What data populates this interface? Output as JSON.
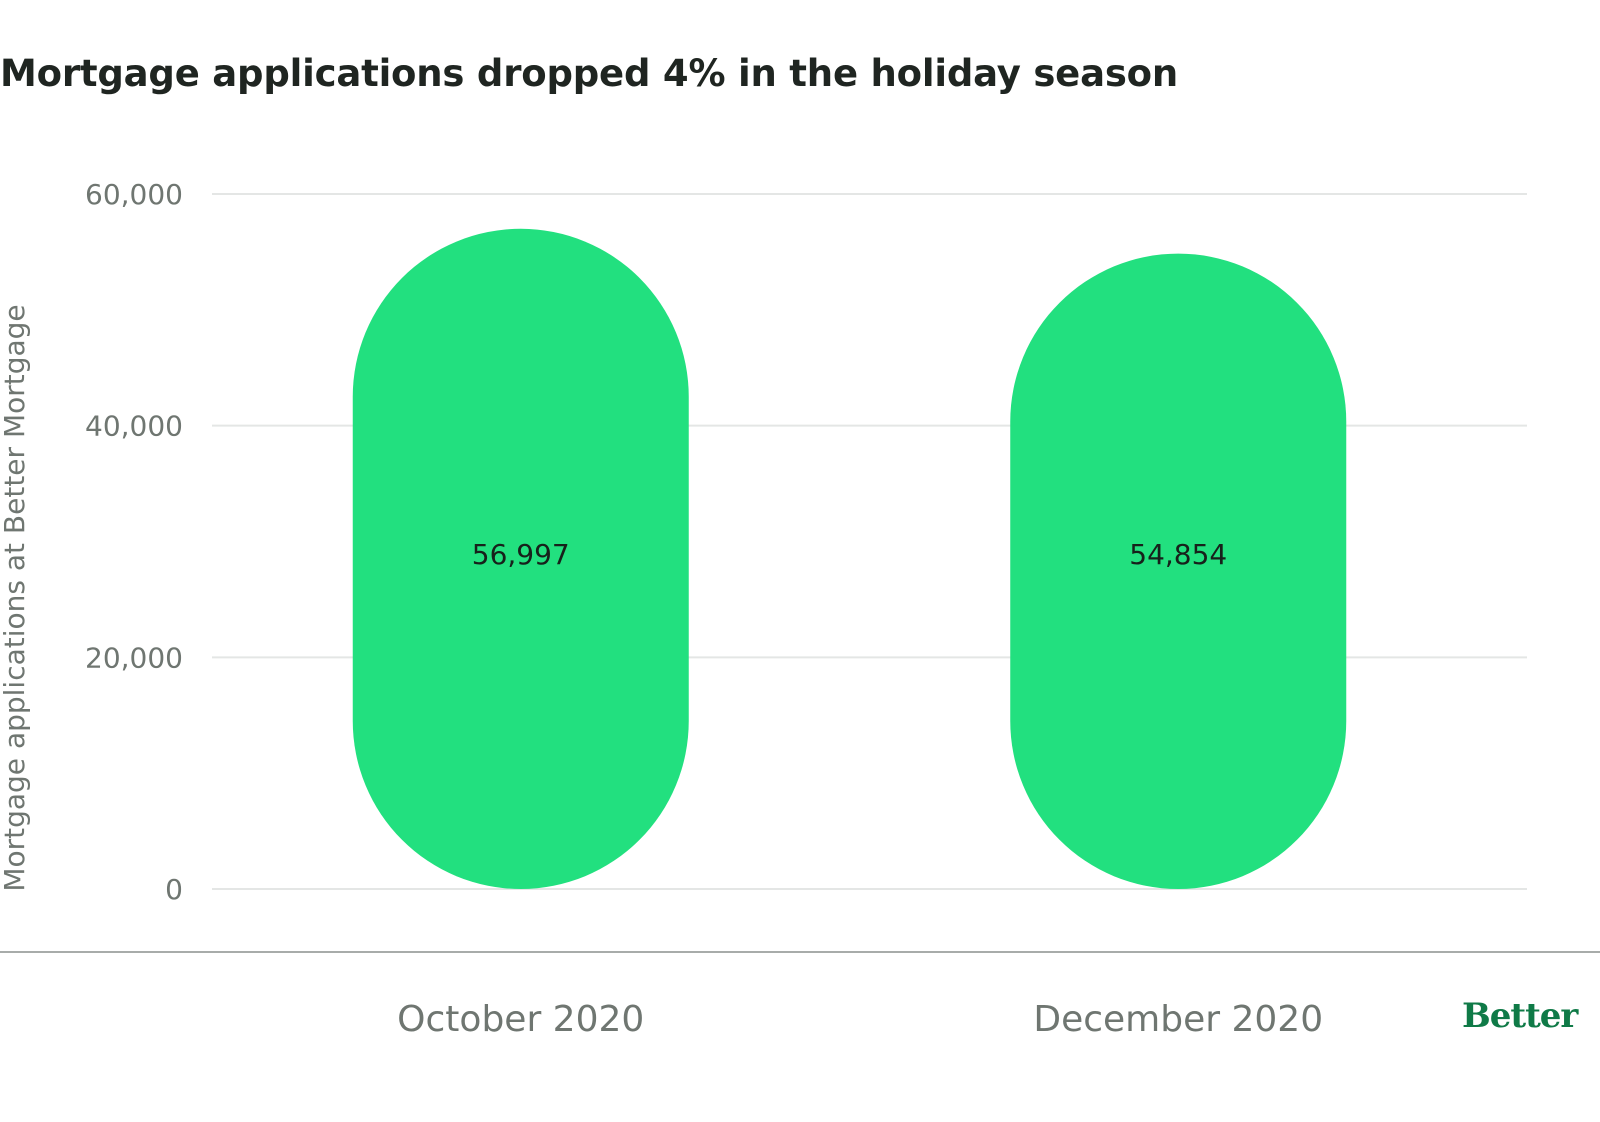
{
  "chart_data": {
    "type": "bar",
    "title": "Mortgage applications dropped 4% in the holiday season",
    "categories": [
      "October 2020",
      "December 2020"
    ],
    "values": [
      56997,
      54854
    ],
    "value_labels": [
      "56,997",
      "54,854"
    ],
    "ylabel": "Mortgage applications at Better Mortgage",
    "xlabel": "",
    "ylim": [
      0,
      60000
    ],
    "yticks": [
      0,
      20000,
      40000,
      60000
    ],
    "ytick_labels": [
      "0",
      "20,000",
      "40,000",
      "60,000"
    ],
    "grid": true,
    "legend": "none",
    "colors": {
      "bar": "#22e07f",
      "grid": "#e4e6e5",
      "text": "#6f7671"
    }
  },
  "brand": {
    "logo_text": "Better",
    "color": "#0f7a47"
  }
}
